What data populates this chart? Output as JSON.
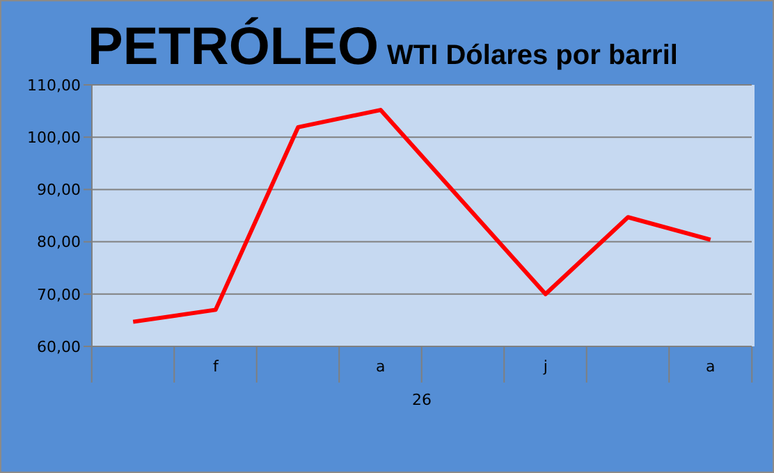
{
  "chart_data": {
    "type": "line",
    "title": "PETRÓLEO",
    "subtitle": "WTI Dólares por barril",
    "xlabel": "26",
    "categories": [
      null,
      "f",
      null,
      "a",
      null,
      "j",
      null,
      "a"
    ],
    "series": [
      {
        "color": "#ff0000",
        "values": [
          64.7,
          67.0,
          101.9,
          105.2,
          87.6,
          70.0,
          84.7,
          80.4
        ]
      }
    ],
    "ylim": [
      60,
      110
    ],
    "yticks": [
      {
        "value": 60,
        "label": "60,00"
      },
      {
        "value": 70,
        "label": "70,00"
      },
      {
        "value": 80,
        "label": "80,00"
      },
      {
        "value": 90,
        "label": "90,00"
      },
      {
        "value": 100,
        "label": "100,00"
      },
      {
        "value": 110,
        "label": "110,00"
      }
    ],
    "grid": "y"
  }
}
